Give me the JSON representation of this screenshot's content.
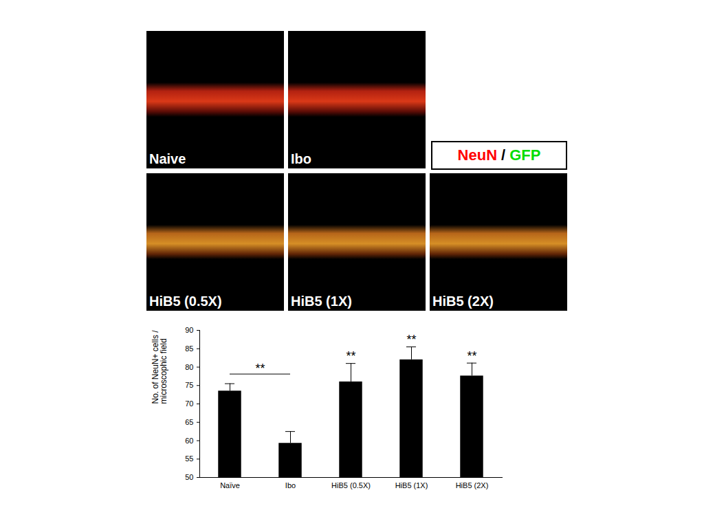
{
  "chart_data": {
    "type": "bar",
    "categories": [
      "Naïve",
      "Ibo",
      "HiB5 (0.5X)",
      "HiB5 (1X)",
      "HiB5 (2X)"
    ],
    "values": [
      73.5,
      59.3,
      76,
      82,
      77.6
    ],
    "errors": [
      2,
      3.2,
      5,
      3.5,
      3.5
    ],
    "color": "#000000",
    "ylabel": "No. of NeuN+ cells /\nmicroscophic field",
    "ylim": [
      50,
      90
    ],
    "yticks": [
      50,
      55,
      60,
      65,
      70,
      75,
      80,
      85,
      90
    ],
    "grid": false,
    "significance": [
      {
        "text": "**",
        "categories": [
          "Naïve",
          "Ibo"
        ]
      },
      {
        "text": "**",
        "categories": [
          "HiB5 (0.5X)"
        ]
      },
      {
        "text": "**",
        "categories": [
          "HiB5 (1X)"
        ]
      },
      {
        "text": "**",
        "categories": [
          "HiB5 (2X)"
        ]
      }
    ]
  },
  "image_panels": [
    "Naive",
    "Ibo",
    "HiB5 (0.5X)",
    "HiB5 (1X)",
    "HiB5 (2X)"
  ],
  "image_legend": [
    {
      "text": "NeuN",
      "color": "#ff0000"
    },
    {
      "text": "/",
      "color": "#000000"
    },
    {
      "text": "GFP",
      "color": "#00dd00"
    }
  ]
}
